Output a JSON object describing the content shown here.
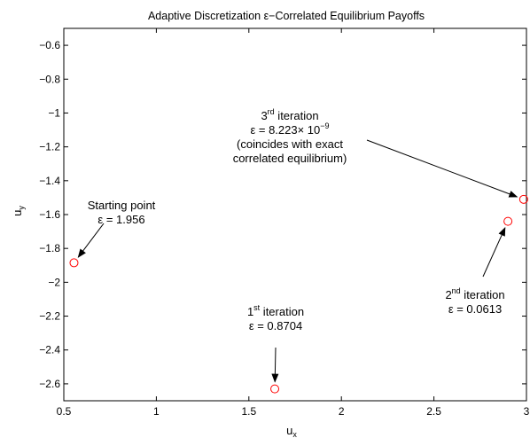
{
  "chart_data": {
    "type": "scatter",
    "title": "Adaptive Discretization ε−Correlated Equilibrium Payoffs",
    "xlabel": {
      "base": "u",
      "sub": "x"
    },
    "ylabel": {
      "base": "u",
      "sub": "y"
    },
    "xlim": [
      0.5,
      3
    ],
    "ylim": [
      -2.7,
      -0.5
    ],
    "xticks": [
      0.5,
      1,
      1.5,
      2,
      2.5,
      3
    ],
    "xtick_labels": [
      "0.5",
      "1",
      "1.5",
      "2",
      "2.5",
      "3"
    ],
    "yticks": [
      -0.6,
      -0.8,
      -1,
      -1.2,
      -1.4,
      -1.6,
      -1.8,
      -2,
      -2.2,
      -2.4,
      -2.6
    ],
    "ytick_labels": [
      "−0.6",
      "−0.8",
      "−1",
      "−1.2",
      "−1.4",
      "−1.6",
      "−1.8",
      "−2",
      "−2.2",
      "−2.4",
      "−2.6"
    ],
    "grid": false,
    "marker": {
      "shape": "circle",
      "color": "#ff0000",
      "fill": "none"
    },
    "points": [
      {
        "x": 0.555,
        "y": -1.885
      },
      {
        "x": 1.64,
        "y": -2.63
      },
      {
        "x": 2.9,
        "y": -1.64
      },
      {
        "x": 2.985,
        "y": -1.51
      }
    ],
    "annotations": [
      {
        "id": "start",
        "lines": [
          "Starting point",
          "ε = 1.956"
        ]
      },
      {
        "id": "iter1",
        "lines": [
          {
            "pre": "1",
            "sup": "st",
            "post": " iteration"
          },
          "ε = 0.8704"
        ]
      },
      {
        "id": "iter2",
        "lines": [
          {
            "pre": "2",
            "sup": "nd",
            "post": " iteration"
          },
          "ε = 0.0613"
        ]
      },
      {
        "id": "iter3",
        "lines": [
          {
            "pre": "3",
            "sup": "rd",
            "post": " iteration"
          },
          {
            "pre": "ε = 8.223× 10",
            "sup": "−9",
            "post": ""
          },
          "(coincides with exact",
          "correlated equilibrium)"
        ]
      }
    ]
  }
}
